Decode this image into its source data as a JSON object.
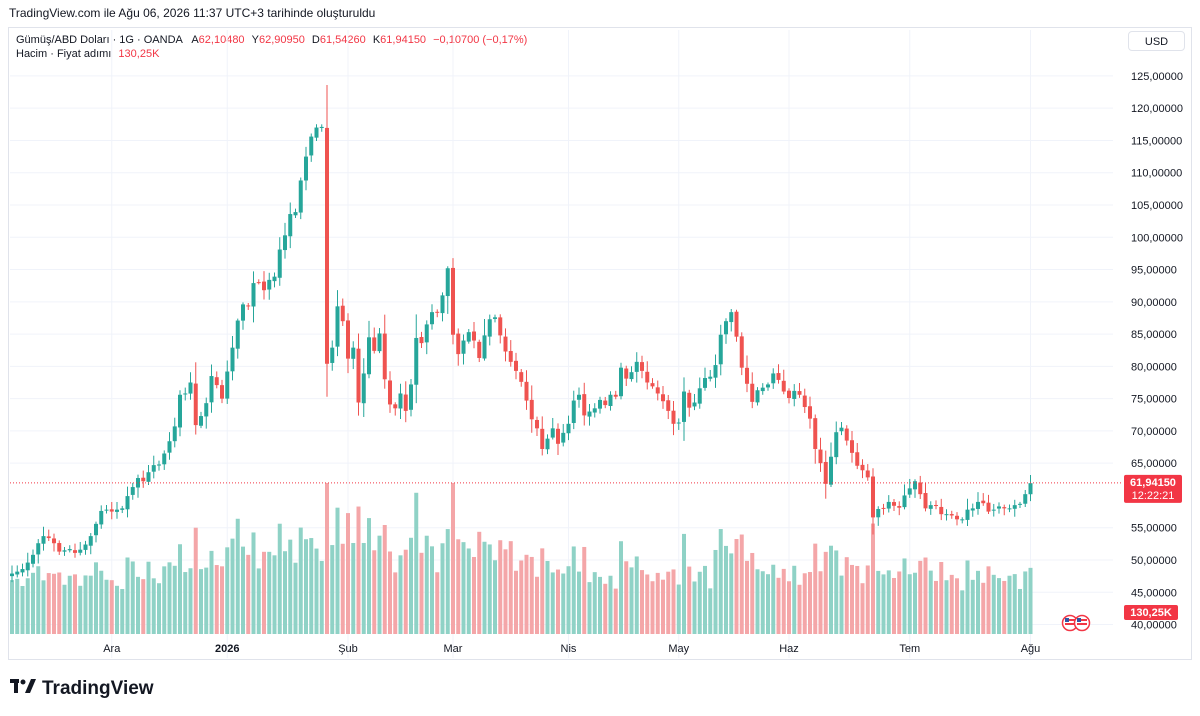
{
  "caption": "TradingView.com ile Ağu 06, 2026 11:37 UTC+3 tarihinde oluşturuldu",
  "legend": {
    "symbol": "Gümüş/ABD Doları · 1G · OANDA",
    "o_label": "A",
    "o_value": "62,10480",
    "h_label": "Y",
    "h_value": "62,90950",
    "l_label": "D",
    "l_value": "61,54260",
    "c_label": "K",
    "c_value": "61,94150",
    "change": "−0,10700 (−0,17%)",
    "volume_label": "Hacim · Fiyat adımı",
    "volume_value": "130,25K"
  },
  "currency_button": "USD",
  "price_badge": {
    "price": "61,94150",
    "countdown": "12:22:21"
  },
  "volume_badge": "130,25K",
  "brand": "TradingView",
  "colors": {
    "up": "#26a69a",
    "down": "#ef5350",
    "up_vol": "#8fd2c6",
    "down_vol": "#f4a6a8",
    "last_price_line": "#f23645"
  },
  "icons": {
    "flag": "us-flag-icon",
    "logo": "tradingview-logo-icon"
  },
  "chart_data": {
    "type": "candlestick",
    "y_axis_labels": [
      "125,00000",
      "120,00000",
      "115,00000",
      "110,00000",
      "105,00000",
      "100,00000",
      "95,00000",
      "90,00000",
      "85,00000",
      "80,00000",
      "75,00000",
      "70,00000",
      "65,00000",
      "55,00000",
      "50,00000",
      "45,00000",
      "40,00000"
    ],
    "y_tick_values": [
      125,
      120,
      115,
      110,
      105,
      100,
      95,
      90,
      85,
      80,
      75,
      70,
      65,
      55,
      50,
      45,
      40
    ],
    "ylim": [
      39,
      127
    ],
    "x_labels": [
      {
        "label": "Ara",
        "index": 19
      },
      {
        "label": "2026",
        "index": 41
      },
      {
        "label": "Şub",
        "index": 64
      },
      {
        "label": "Mar",
        "index": 84
      },
      {
        "label": "Nis",
        "index": 106
      },
      {
        "label": "May",
        "index": 127
      },
      {
        "label": "Haz",
        "index": 148
      },
      {
        "label": "Tem",
        "index": 171
      },
      {
        "label": "Ağu",
        "index": 194
      }
    ],
    "last_price": 61.94,
    "closes": [
      47.9,
      48.2,
      48.6,
      49.6,
      50.8,
      52.6,
      53.7,
      53.4,
      52.6,
      51.3,
      51.5,
      51.7,
      51.1,
      51.6,
      52.4,
      53.7,
      55.6,
      57.6,
      57.8,
      57.5,
      57.8,
      58.0,
      59.9,
      61.3,
      62.7,
      62.2,
      63.6,
      64.7,
      64.8,
      66.5,
      68.4,
      70.7,
      75.6,
      75.8,
      77.5,
      70.9,
      72.3,
      74.3,
      78.5,
      77.1,
      75.0,
      79.2,
      82.9,
      87.1,
      89.6,
      89.3,
      92.9,
      93.0,
      91.8,
      93.4,
      93.9,
      98.1,
      100.3,
      103.6,
      103.9,
      108.8,
      112.5,
      115.6,
      117.0,
      117.1,
      80.4,
      82.9,
      89.3,
      87.0,
      81.2,
      82.9,
      74.4,
      78.9,
      84.5,
      82.4,
      85.1,
      78.0,
      74.1,
      73.5,
      75.8,
      73.1,
      77.2,
      84.4,
      83.6,
      86.5,
      88.4,
      88.3,
      91.0,
      95.2,
      84.9,
      81.9,
      84.0,
      85.3,
      84.0,
      81.3,
      84.8,
      87.3,
      87.6,
      84.8,
      82.3,
      80.7,
      79.3,
      77.6,
      74.7,
      71.8,
      70.4,
      67.2,
      68.8,
      70.4,
      68.0,
      69.7,
      71.1,
      74.7,
      75.6,
      72.4,
      73.0,
      73.5,
      74.8,
      74.0,
      75.6,
      75.3,
      79.8,
      78.1,
      79.1,
      80.7,
      79.3,
      77.5,
      76.9,
      75.8,
      74.6,
      73.1,
      71.1,
      71.3,
      76.1,
      73.6,
      74.4,
      76.6,
      78.2,
      78.4,
      80.2,
      84.9,
      87.0,
      88.4,
      84.6,
      79.8,
      77.3,
      74.5,
      76.3,
      76.7,
      77.2,
      78.9,
      77.9,
      76.1,
      75.1,
      76.2,
      75.6,
      73.7,
      71.9,
      67.2,
      65.0,
      61.8,
      66.0,
      69.8,
      70.5,
      68.5,
      66.6,
      64.6,
      63.9,
      62.8,
      56.6,
      57.9,
      58.0,
      59.0,
      58.4,
      58.1,
      60.0,
      61.1,
      62.2,
      60.2,
      58.0,
      58.5,
      58.4,
      57.1,
      57.1,
      56.9,
      56.3,
      56.3,
      57.8,
      58.0,
      59.0,
      58.8,
      57.5,
      57.8,
      58.3,
      58.0,
      58.0,
      58.5,
      58.7,
      60.2,
      61.9
    ],
    "volume_scale": "relative 0-1",
    "volume_note": "volume bars shown under price; values relative to tallest bar"
  }
}
